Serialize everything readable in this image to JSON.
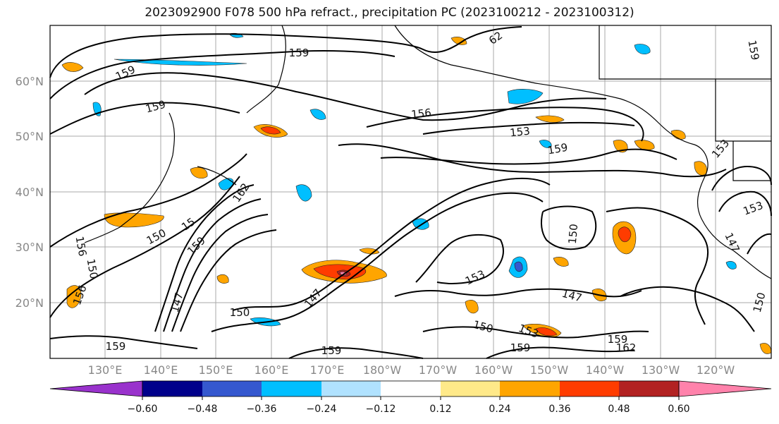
{
  "title": "2023092900 F078 500 hPa refract., precipitation PC (2023100212 - 2023100312)",
  "map": {
    "lat_ticks": [
      "60°N",
      "50°N",
      "40°N",
      "30°N",
      "20°N"
    ],
    "lon_ticks": [
      "130°E",
      "140°E",
      "150°E",
      "160°E",
      "170°E",
      "180°W",
      "170°W",
      "160°W",
      "150°W",
      "140°W",
      "130°W",
      "120°W"
    ],
    "contour_labels": [
      "159",
      "159",
      "159",
      "62",
      "156",
      "153",
      "159",
      "162",
      "150",
      "15",
      "159",
      "156",
      "150",
      "156",
      "147",
      "150",
      "147",
      "153",
      "150",
      "147",
      "150",
      "153",
      "159",
      "159",
      "162",
      "159",
      "153",
      "153",
      "147",
      "150",
      "159",
      "159"
    ]
  },
  "colorbar": {
    "labels": [
      "−0.60",
      "−0.48",
      "−0.36",
      "−0.24",
      "−0.12",
      "0.12",
      "0.24",
      "0.36",
      "0.48",
      "0.60"
    ],
    "colors": [
      "#9932cc",
      "#00008b",
      "#3558cf",
      "#00bfff",
      "#b0e2ff",
      "#ffffff",
      "#ffe989",
      "#ffa500",
      "#ff3c00",
      "#b22222",
      "#ff82ab"
    ]
  }
}
